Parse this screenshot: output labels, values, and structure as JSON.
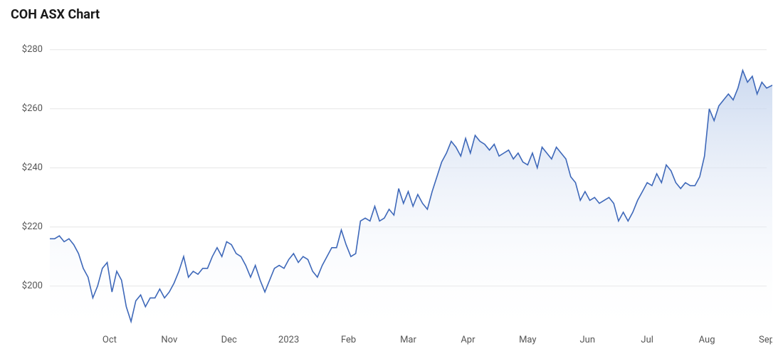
{
  "chart": {
    "type": "area",
    "title": "COH ASX Chart",
    "title_fontsize": 18,
    "title_fontweight": 700,
    "title_color": "#1a1a1a",
    "background_color": "#ffffff",
    "grid_color": "#e6e6e6",
    "axis_label_color": "#555555",
    "axis_label_fontsize": 13,
    "line_color": "#3e68b9",
    "line_width": 1.6,
    "area_gradient_top": "#c3d3ed",
    "area_gradient_bottom": "#ffffff",
    "area_gradient_top_opacity": 0.85,
    "area_gradient_bottom_opacity": 0.05,
    "ylim": [
      185,
      285
    ],
    "yticks": [
      200,
      220,
      240,
      260,
      280
    ],
    "ytick_labels": [
      "$200",
      "$220",
      "$240",
      "$260",
      "$280"
    ],
    "xlim": [
      0,
      12
    ],
    "xticks": [
      1,
      2,
      3,
      4,
      5,
      6,
      7,
      8,
      9,
      10,
      11,
      12
    ],
    "xtick_labels": [
      "Oct",
      "Nov",
      "Dec",
      "2023",
      "Feb",
      "Mar",
      "Apr",
      "May",
      "Jun",
      "Jul",
      "Aug",
      "Sep"
    ],
    "series": [
      {
        "x": 0.0,
        "y": 216
      },
      {
        "x": 0.08,
        "y": 216
      },
      {
        "x": 0.16,
        "y": 217
      },
      {
        "x": 0.24,
        "y": 215
      },
      {
        "x": 0.32,
        "y": 216
      },
      {
        "x": 0.4,
        "y": 214
      },
      {
        "x": 0.48,
        "y": 211
      },
      {
        "x": 0.56,
        "y": 206
      },
      {
        "x": 0.64,
        "y": 203
      },
      {
        "x": 0.72,
        "y": 196
      },
      {
        "x": 0.8,
        "y": 200
      },
      {
        "x": 0.88,
        "y": 206
      },
      {
        "x": 0.96,
        "y": 208
      },
      {
        "x": 1.04,
        "y": 198
      },
      {
        "x": 1.12,
        "y": 205
      },
      {
        "x": 1.2,
        "y": 202
      },
      {
        "x": 1.28,
        "y": 193
      },
      {
        "x": 1.36,
        "y": 188
      },
      {
        "x": 1.44,
        "y": 195
      },
      {
        "x": 1.52,
        "y": 197
      },
      {
        "x": 1.6,
        "y": 193
      },
      {
        "x": 1.68,
        "y": 196
      },
      {
        "x": 1.76,
        "y": 196
      },
      {
        "x": 1.84,
        "y": 199
      },
      {
        "x": 1.92,
        "y": 196
      },
      {
        "x": 2.0,
        "y": 198
      },
      {
        "x": 2.08,
        "y": 201
      },
      {
        "x": 2.16,
        "y": 205
      },
      {
        "x": 2.24,
        "y": 210
      },
      {
        "x": 2.32,
        "y": 203
      },
      {
        "x": 2.4,
        "y": 205
      },
      {
        "x": 2.48,
        "y": 204
      },
      {
        "x": 2.56,
        "y": 206
      },
      {
        "x": 2.64,
        "y": 206
      },
      {
        "x": 2.72,
        "y": 210
      },
      {
        "x": 2.8,
        "y": 213
      },
      {
        "x": 2.88,
        "y": 210
      },
      {
        "x": 2.96,
        "y": 215
      },
      {
        "x": 3.04,
        "y": 214
      },
      {
        "x": 3.12,
        "y": 211
      },
      {
        "x": 3.2,
        "y": 210
      },
      {
        "x": 3.28,
        "y": 207
      },
      {
        "x": 3.36,
        "y": 203
      },
      {
        "x": 3.44,
        "y": 207
      },
      {
        "x": 3.52,
        "y": 202
      },
      {
        "x": 3.6,
        "y": 198
      },
      {
        "x": 3.68,
        "y": 202
      },
      {
        "x": 3.76,
        "y": 206
      },
      {
        "x": 3.84,
        "y": 207
      },
      {
        "x": 3.92,
        "y": 206
      },
      {
        "x": 4.0,
        "y": 209
      },
      {
        "x": 4.08,
        "y": 211
      },
      {
        "x": 4.16,
        "y": 208
      },
      {
        "x": 4.24,
        "y": 210
      },
      {
        "x": 4.32,
        "y": 209
      },
      {
        "x": 4.4,
        "y": 205
      },
      {
        "x": 4.48,
        "y": 203
      },
      {
        "x": 4.56,
        "y": 207
      },
      {
        "x": 4.64,
        "y": 210
      },
      {
        "x": 4.72,
        "y": 213
      },
      {
        "x": 4.8,
        "y": 213
      },
      {
        "x": 4.88,
        "y": 219
      },
      {
        "x": 4.96,
        "y": 214
      },
      {
        "x": 5.04,
        "y": 210
      },
      {
        "x": 5.12,
        "y": 211
      },
      {
        "x": 5.2,
        "y": 222
      },
      {
        "x": 5.28,
        "y": 223
      },
      {
        "x": 5.36,
        "y": 222
      },
      {
        "x": 5.44,
        "y": 227
      },
      {
        "x": 5.52,
        "y": 222
      },
      {
        "x": 5.6,
        "y": 223
      },
      {
        "x": 5.68,
        "y": 226
      },
      {
        "x": 5.76,
        "y": 224
      },
      {
        "x": 5.84,
        "y": 233
      },
      {
        "x": 5.92,
        "y": 228
      },
      {
        "x": 6.0,
        "y": 232
      },
      {
        "x": 6.08,
        "y": 227
      },
      {
        "x": 6.16,
        "y": 231
      },
      {
        "x": 6.24,
        "y": 228
      },
      {
        "x": 6.32,
        "y": 226
      },
      {
        "x": 6.4,
        "y": 232
      },
      {
        "x": 6.48,
        "y": 237
      },
      {
        "x": 6.56,
        "y": 242
      },
      {
        "x": 6.64,
        "y": 245
      },
      {
        "x": 6.72,
        "y": 249
      },
      {
        "x": 6.8,
        "y": 247
      },
      {
        "x": 6.88,
        "y": 244
      },
      {
        "x": 6.96,
        "y": 250
      },
      {
        "x": 7.04,
        "y": 245
      },
      {
        "x": 7.12,
        "y": 251
      },
      {
        "x": 7.2,
        "y": 249
      },
      {
        "x": 7.28,
        "y": 248
      },
      {
        "x": 7.36,
        "y": 246
      },
      {
        "x": 7.44,
        "y": 248
      },
      {
        "x": 7.52,
        "y": 244
      },
      {
        "x": 7.6,
        "y": 245
      },
      {
        "x": 7.68,
        "y": 246
      },
      {
        "x": 7.76,
        "y": 243
      },
      {
        "x": 7.84,
        "y": 245
      },
      {
        "x": 7.92,
        "y": 242
      },
      {
        "x": 8.0,
        "y": 241
      },
      {
        "x": 8.08,
        "y": 245
      },
      {
        "x": 8.16,
        "y": 240
      },
      {
        "x": 8.24,
        "y": 247
      },
      {
        "x": 8.32,
        "y": 245
      },
      {
        "x": 8.4,
        "y": 243
      },
      {
        "x": 8.48,
        "y": 247
      },
      {
        "x": 8.56,
        "y": 245
      },
      {
        "x": 8.64,
        "y": 243
      },
      {
        "x": 8.72,
        "y": 237
      },
      {
        "x": 8.8,
        "y": 235
      },
      {
        "x": 8.88,
        "y": 229
      },
      {
        "x": 8.96,
        "y": 232
      },
      {
        "x": 9.04,
        "y": 229
      },
      {
        "x": 9.12,
        "y": 230
      },
      {
        "x": 9.2,
        "y": 228
      },
      {
        "x": 9.28,
        "y": 229
      },
      {
        "x": 9.36,
        "y": 230
      },
      {
        "x": 9.44,
        "y": 228
      },
      {
        "x": 9.52,
        "y": 222
      },
      {
        "x": 9.6,
        "y": 225
      },
      {
        "x": 9.68,
        "y": 222
      },
      {
        "x": 9.76,
        "y": 225
      },
      {
        "x": 9.84,
        "y": 229
      },
      {
        "x": 9.92,
        "y": 232
      },
      {
        "x": 10.0,
        "y": 235
      },
      {
        "x": 10.08,
        "y": 234
      },
      {
        "x": 10.16,
        "y": 238
      },
      {
        "x": 10.24,
        "y": 235
      },
      {
        "x": 10.32,
        "y": 241
      },
      {
        "x": 10.4,
        "y": 239
      },
      {
        "x": 10.48,
        "y": 235
      },
      {
        "x": 10.56,
        "y": 233
      },
      {
        "x": 10.64,
        "y": 235
      },
      {
        "x": 10.72,
        "y": 234
      },
      {
        "x": 10.8,
        "y": 234
      },
      {
        "x": 10.88,
        "y": 237
      },
      {
        "x": 10.96,
        "y": 244
      },
      {
        "x": 11.04,
        "y": 260
      },
      {
        "x": 11.12,
        "y": 256
      },
      {
        "x": 11.2,
        "y": 261
      },
      {
        "x": 11.28,
        "y": 263
      },
      {
        "x": 11.36,
        "y": 265
      },
      {
        "x": 11.44,
        "y": 263
      },
      {
        "x": 11.52,
        "y": 267
      },
      {
        "x": 11.6,
        "y": 273
      },
      {
        "x": 11.68,
        "y": 269
      },
      {
        "x": 11.76,
        "y": 271
      },
      {
        "x": 11.84,
        "y": 265
      },
      {
        "x": 11.92,
        "y": 269
      },
      {
        "x": 12.0,
        "y": 267
      },
      {
        "x": 12.1,
        "y": 268
      }
    ]
  }
}
